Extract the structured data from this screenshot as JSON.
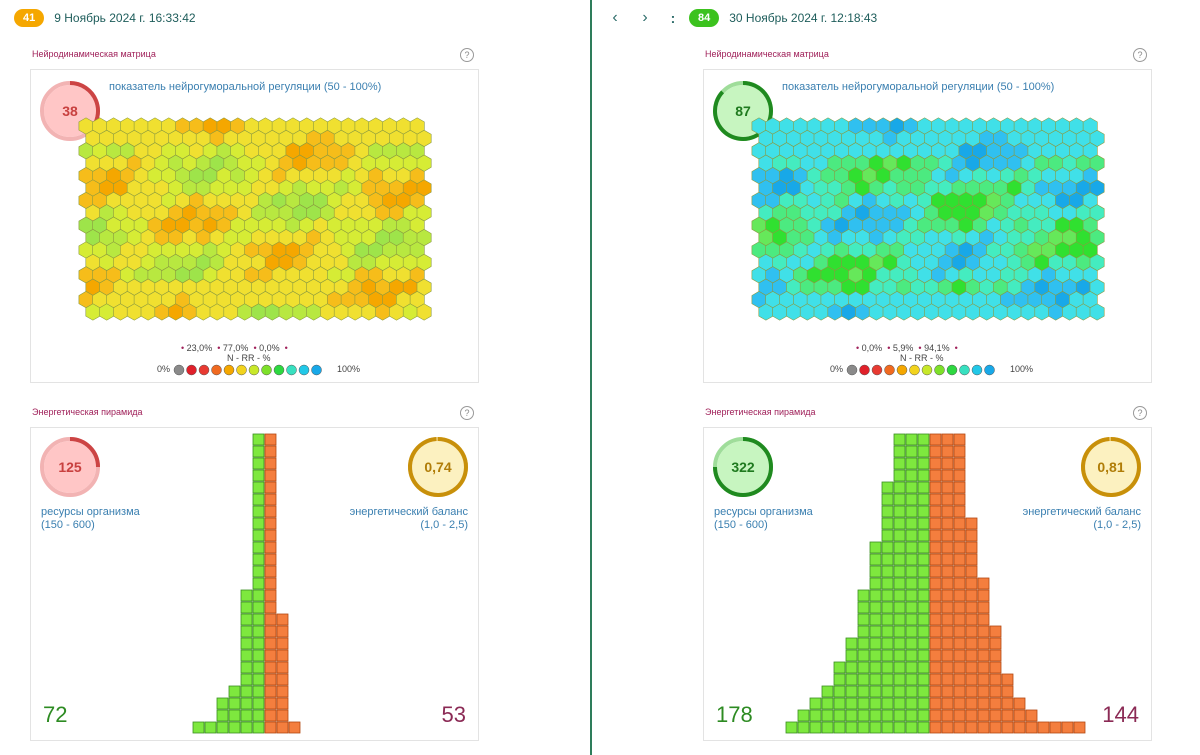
{
  "left": {
    "badge": "41",
    "date": "9 Ноябрь 2024 г. 16:33:42",
    "matrix": {
      "title": "Нейродинамическая матрица",
      "subtitle": "показатель нейрогуморальной регуляции (50 - 100%)",
      "score": "38",
      "score_fraction": 0.38,
      "scheme": "warm",
      "legend_values": [
        "23,0%",
        "77,0%",
        "0,0%"
      ],
      "legend_label": "N - RR - %",
      "scale_min": "0%",
      "scale_max": "100%"
    },
    "pyramid": {
      "title": "Энергетическая пирамида",
      "resources_value": "125",
      "resources_fraction": 0.25,
      "resources_label": "ресурсы организма",
      "resources_range": "(150 - 600)",
      "balance_value": "0,74",
      "balance_fraction": 0.99,
      "balance_label": "энергетический баланс",
      "balance_range": "(1,0 - 2,5)",
      "green_count": "72",
      "red_count": "53",
      "green_rows": [
        1,
        1,
        1,
        1,
        1,
        1,
        1,
        1,
        1,
        1,
        1,
        1,
        1,
        2,
        2,
        2,
        2,
        2,
        2,
        2,
        2,
        3,
        4,
        4,
        6
      ],
      "red_rows": [
        1,
        1,
        1,
        1,
        1,
        1,
        1,
        1,
        1,
        1,
        1,
        1,
        1,
        1,
        1,
        2,
        2,
        2,
        2,
        2,
        2,
        2,
        2,
        2,
        3
      ]
    }
  },
  "right": {
    "badge": "84",
    "date": "30 Ноябрь 2024 г. 12:18:43",
    "nav_prev": "‹",
    "nav_next": "›",
    "nav_more": ":",
    "matrix": {
      "title": "Нейродинамическая матрица",
      "subtitle": "показатель нейрогуморальной регуляции (50 - 100%)",
      "score": "87",
      "score_fraction": 0.87,
      "scheme": "cool",
      "legend_values": [
        "0,0%",
        "5,9%",
        "94,1%"
      ],
      "legend_label": "N - RR - %",
      "scale_min": "0%",
      "scale_max": "100%"
    },
    "pyramid": {
      "title": "Энергетическая пирамида",
      "resources_value": "322",
      "resources_fraction": 0.75,
      "resources_label": "ресурсы организма",
      "resources_range": "(150 - 600)",
      "balance_value": "0,81",
      "balance_fraction": 0.99,
      "balance_label": "энергетический баланс",
      "balance_range": "(1,0 - 2,5)",
      "green_count": "178",
      "red_count": "144",
      "green_rows": [
        3,
        3,
        3,
        3,
        4,
        4,
        4,
        4,
        4,
        5,
        5,
        5,
        5,
        6,
        6,
        6,
        6,
        7,
        7,
        8,
        8,
        9,
        10,
        11,
        12
      ],
      "red_rows": [
        3,
        3,
        3,
        3,
        3,
        3,
        3,
        4,
        4,
        4,
        4,
        4,
        5,
        5,
        5,
        5,
        6,
        6,
        6,
        6,
        7,
        7,
        8,
        9,
        13
      ]
    }
  }
}
